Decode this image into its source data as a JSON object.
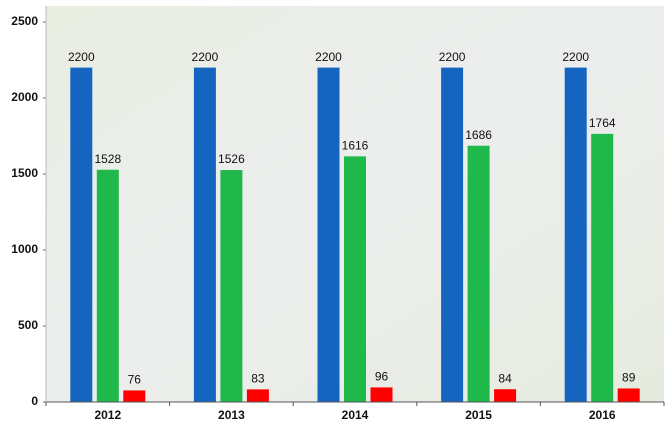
{
  "chart_data": {
    "type": "bar",
    "categories": [
      "2012",
      "2013",
      "2014",
      "2015",
      "2016"
    ],
    "series": [
      {
        "color": "#1565c0",
        "values": [
          2200,
          2200,
          2200,
          2200,
          2200
        ]
      },
      {
        "color": "#1fb84a",
        "values": [
          1528,
          1526,
          1616,
          1686,
          1764
        ]
      },
      {
        "color": "#ff0000",
        "values": [
          76,
          83,
          96,
          84,
          89
        ]
      }
    ],
    "ylim": [
      0,
      2500
    ],
    "yticks": [
      0,
      500,
      1000,
      1500,
      2000,
      2500
    ]
  }
}
